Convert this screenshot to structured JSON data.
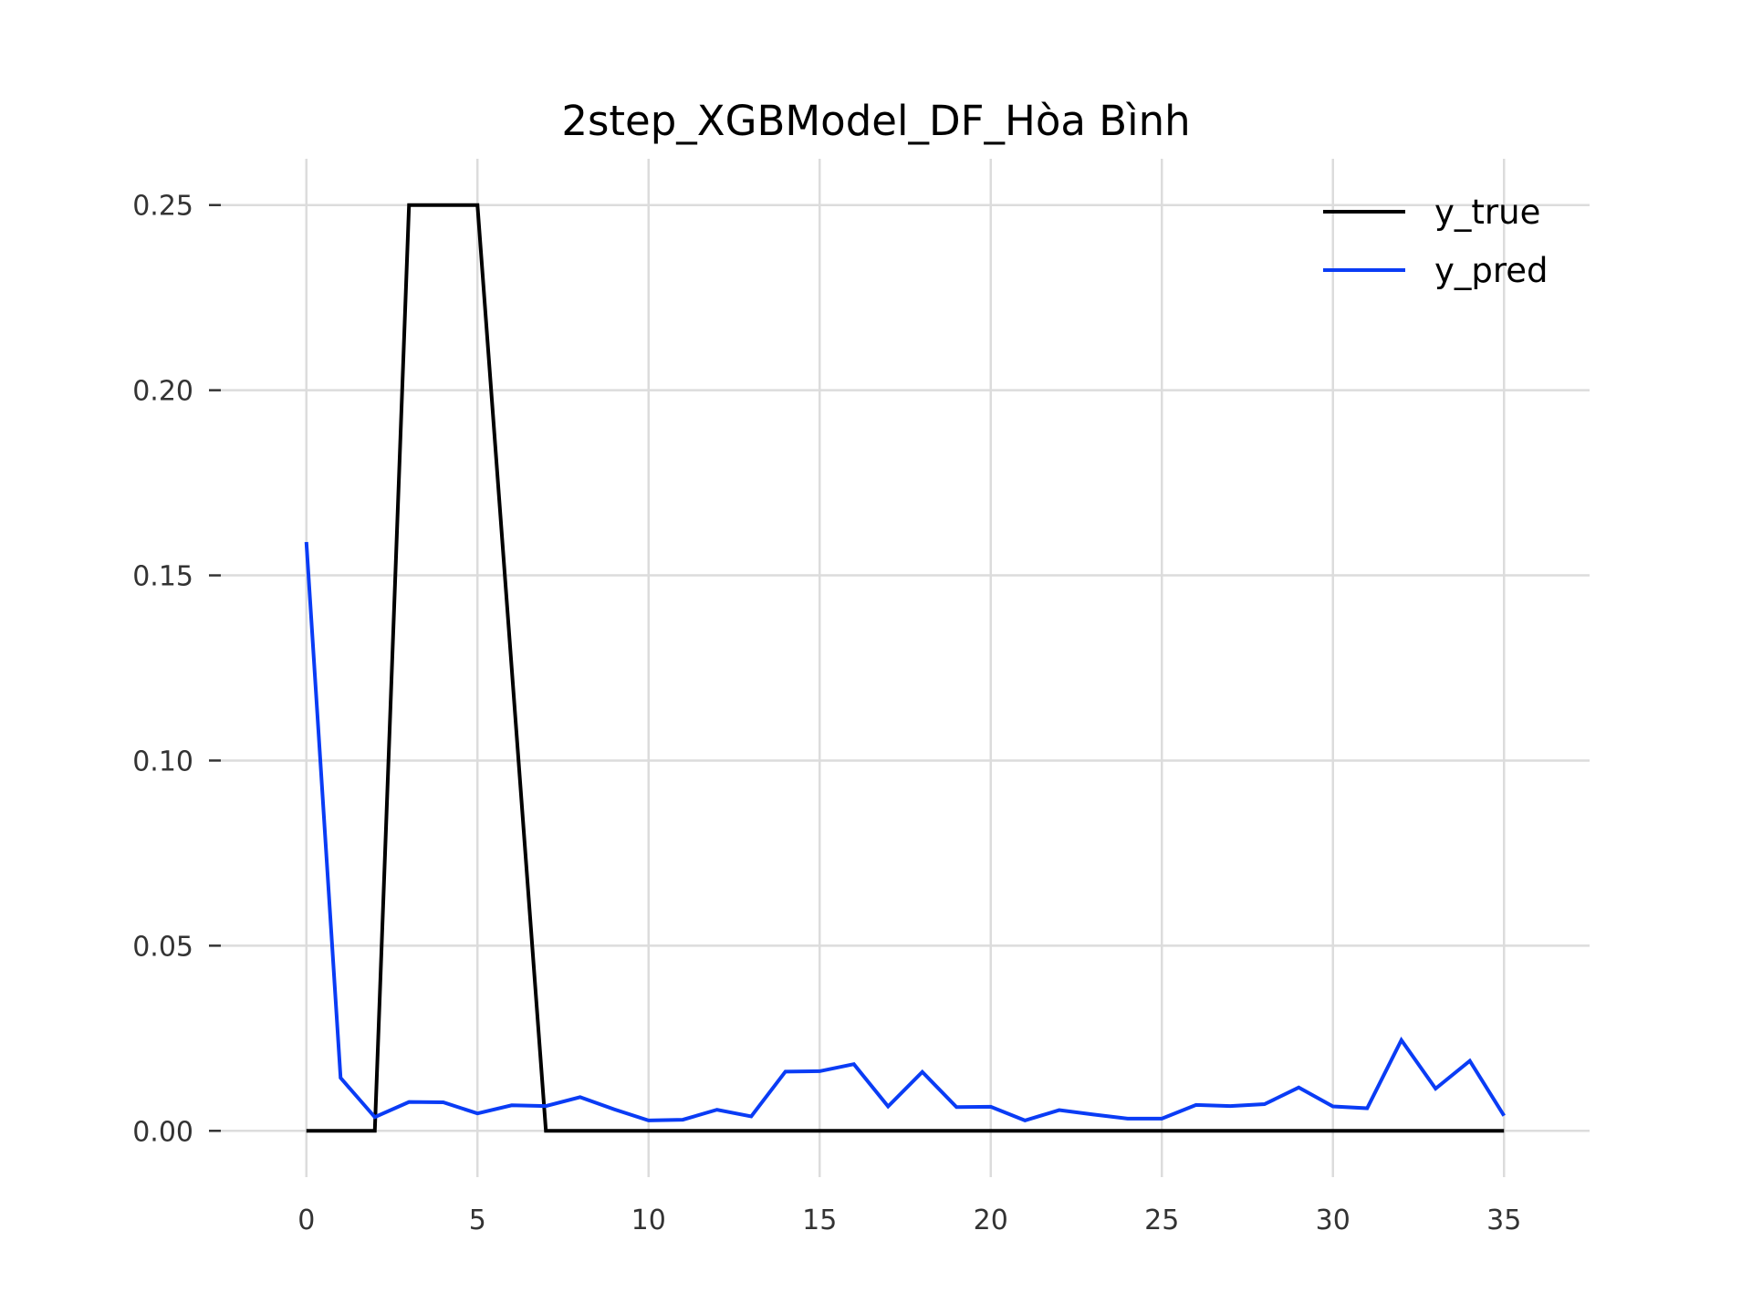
{
  "chart_data": {
    "type": "line",
    "title": "2step_XGBModel_DF_Hòa Bình",
    "xlabel": "",
    "ylabel": "",
    "xlim": [
      -2.5,
      37.5
    ],
    "ylim": [
      -0.0125,
      0.2625
    ],
    "xticks": [
      0,
      5,
      10,
      15,
      20,
      25,
      30,
      35
    ],
    "xtick_labels": [
      "0",
      "5",
      "10",
      "15",
      "20",
      "25",
      "30",
      "35"
    ],
    "yticks": [
      0.0,
      0.05,
      0.1,
      0.15,
      0.2,
      0.25
    ],
    "ytick_labels": [
      "0.00",
      "0.05",
      "0.10",
      "0.15",
      "0.20",
      "0.25"
    ],
    "grid": true,
    "legend_position": "top-right",
    "x": [
      0,
      1,
      2,
      3,
      4,
      5,
      6,
      7,
      8,
      9,
      10,
      11,
      12,
      13,
      14,
      15,
      16,
      17,
      18,
      19,
      20,
      21,
      22,
      23,
      24,
      25,
      26,
      27,
      28,
      29,
      30,
      31,
      32,
      33,
      34,
      35
    ],
    "series": [
      {
        "name": "y_true",
        "color": "#000000",
        "values": [
          0,
          0,
          0,
          0.25,
          0.25,
          0.25,
          0.125,
          0,
          0,
          0,
          0,
          0,
          0,
          0,
          0,
          0,
          0,
          0,
          0,
          0,
          0,
          0,
          0,
          0,
          0,
          0,
          0,
          0,
          0,
          0,
          0,
          0,
          0,
          0,
          0,
          0
        ]
      },
      {
        "name": "y_pred",
        "color": "#0a3cf5",
        "values": [
          0.159,
          0.0143,
          0.0037,
          0.0078,
          0.0077,
          0.0047,
          0.0069,
          0.0067,
          0.0091,
          0.0058,
          0.0028,
          0.003,
          0.0057,
          0.0039,
          0.016,
          0.0161,
          0.018,
          0.0066,
          0.0159,
          0.0064,
          0.0065,
          0.0028,
          0.0056,
          0.0044,
          0.0033,
          0.0033,
          0.007,
          0.0067,
          0.0072,
          0.0117,
          0.0066,
          0.0061,
          0.0245,
          0.0114,
          0.0189,
          0.0041
        ]
      }
    ]
  }
}
